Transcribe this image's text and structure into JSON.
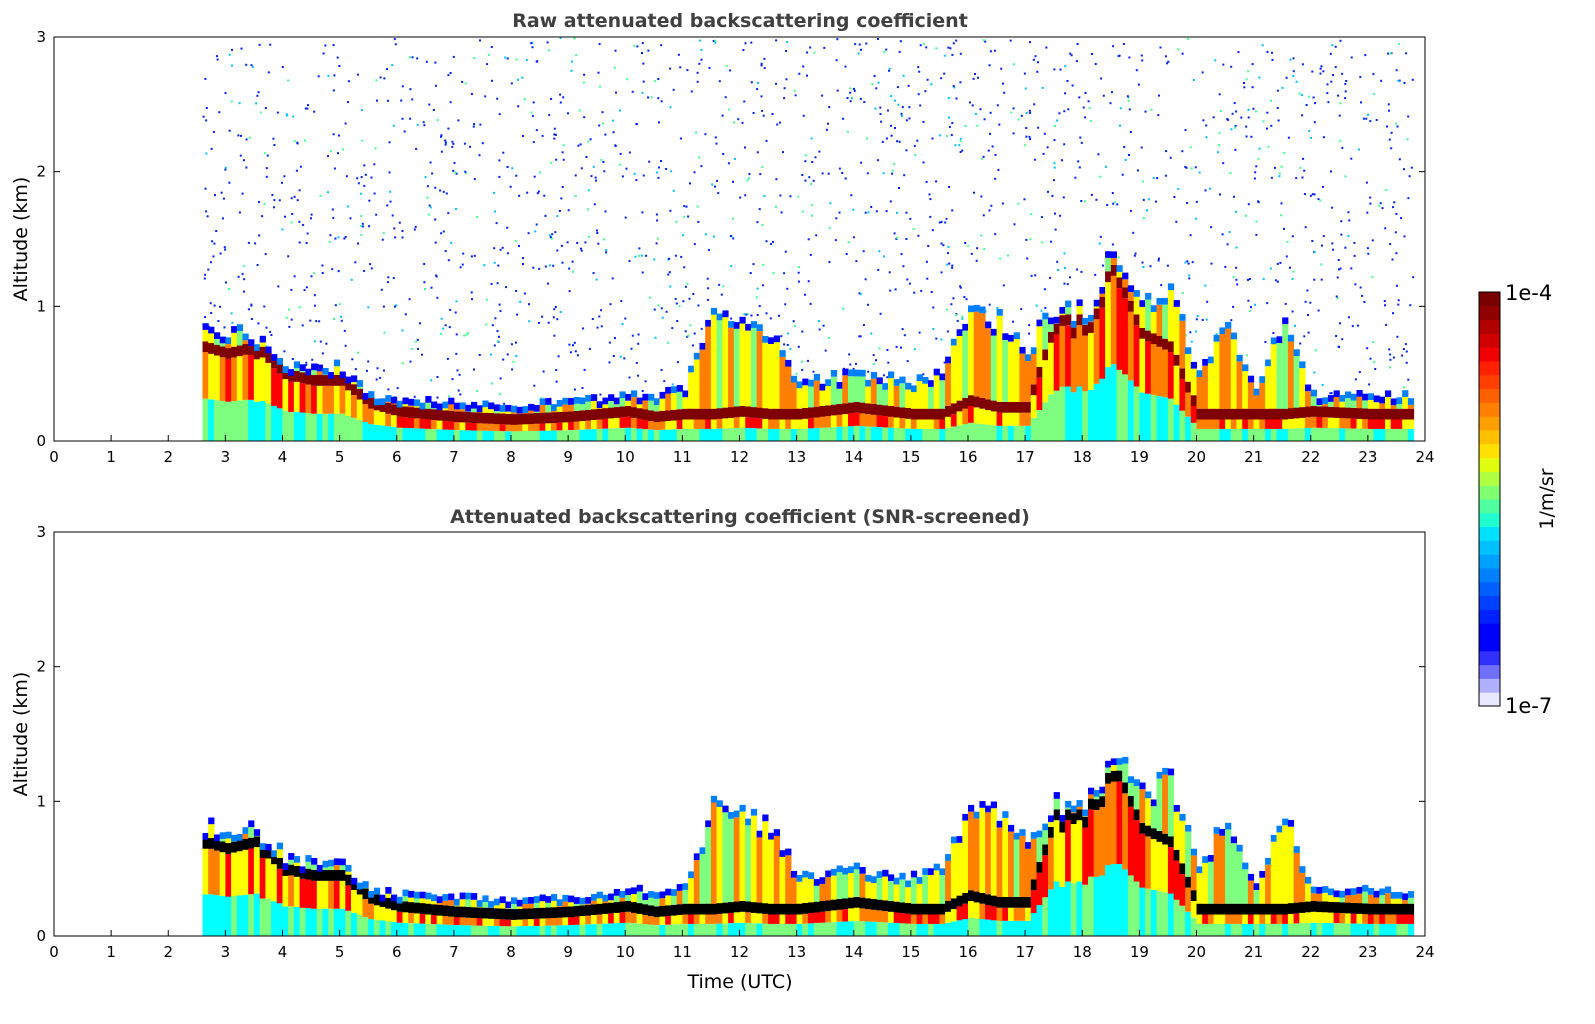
{
  "chart_data": [
    {
      "type": "heatmap",
      "title": "Raw attenuated backscattering coefficient",
      "xlabel": "",
      "ylabel": "Altitude (km)",
      "xlim": [
        0,
        24
      ],
      "ylim": [
        0,
        3
      ],
      "xticks": [
        "0",
        "1",
        "2",
        "3",
        "4",
        "5",
        "6",
        "7",
        "8",
        "9",
        "10",
        "11",
        "12",
        "13",
        "14",
        "15",
        "16",
        "17",
        "18",
        "19",
        "20",
        "21",
        "22",
        "23",
        "24"
      ],
      "yticks": [
        "0",
        "1",
        "2",
        "3"
      ],
      "screened": false
    },
    {
      "type": "heatmap",
      "title": "Attenuated backscattering coefficient (SNR-screened)",
      "xlabel": "Time (UTC)",
      "ylabel": "Altitude (km)",
      "xlim": [
        0,
        24
      ],
      "ylim": [
        0,
        3
      ],
      "xticks": [
        "0",
        "1",
        "2",
        "3",
        "4",
        "5",
        "6",
        "7",
        "8",
        "9",
        "10",
        "11",
        "12",
        "13",
        "14",
        "15",
        "16",
        "17",
        "18",
        "19",
        "20",
        "21",
        "22",
        "23",
        "24"
      ],
      "yticks": [
        "0",
        "1",
        "2",
        "3"
      ],
      "screened": true
    }
  ],
  "profile": {
    "time_utc": [
      2.6,
      3,
      3.5,
      4,
      4.5,
      5,
      5.5,
      6,
      7,
      8,
      9,
      10,
      10.5,
      11,
      11.5,
      12,
      12.5,
      13,
      14,
      15,
      15.5,
      16,
      16.5,
      17,
      17.5,
      18,
      18.5,
      19,
      19.5,
      20,
      20.5,
      21,
      21.5,
      22,
      23,
      23.8
    ],
    "layer_top_km": [
      0.85,
      0.8,
      0.78,
      0.6,
      0.55,
      0.55,
      0.35,
      0.32,
      0.3,
      0.28,
      0.3,
      0.35,
      0.35,
      0.4,
      0.95,
      0.9,
      0.8,
      0.45,
      0.5,
      0.45,
      0.5,
      1.0,
      0.9,
      0.7,
      1.0,
      0.95,
      1.4,
      1.1,
      1.15,
      0.5,
      0.9,
      0.4,
      0.9,
      0.35,
      0.35,
      0.35
    ],
    "peak_backscatter_altitude_km": [
      0.7,
      0.65,
      0.7,
      0.5,
      0.45,
      0.45,
      0.28,
      0.22,
      0.18,
      0.16,
      0.18,
      0.22,
      0.18,
      0.2,
      0.2,
      0.22,
      0.2,
      0.2,
      0.25,
      0.2,
      0.2,
      0.3,
      0.25,
      0.25,
      0.9,
      0.9,
      1.3,
      0.8,
      0.7,
      0.2,
      0.2,
      0.2,
      0.2,
      0.22,
      0.2,
      0.2
    ]
  },
  "colorbar": {
    "label": "1/m/sr",
    "max_label": "1e-4",
    "min_label": "1e-7",
    "scale": "log",
    "range": [
      1e-07,
      0.0001
    ]
  }
}
